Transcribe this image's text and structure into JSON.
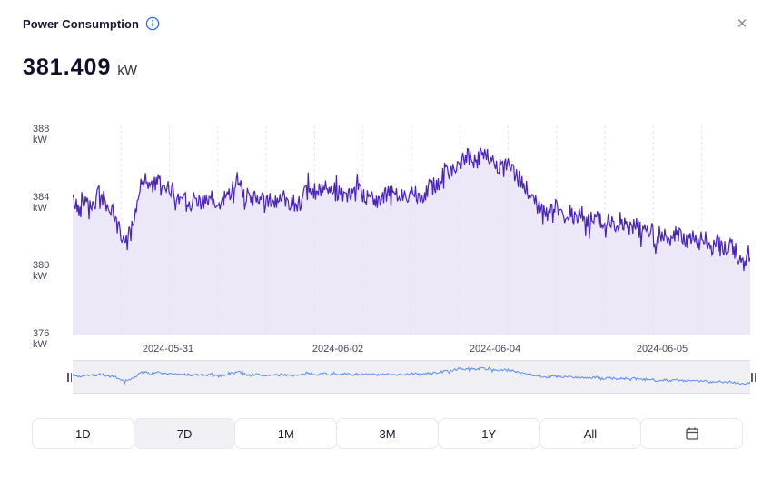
{
  "header": {
    "title": "Power Consumption",
    "close_glyph": "✕"
  },
  "current_value": {
    "value": "381.409",
    "unit": "kW"
  },
  "chart_data": {
    "type": "line",
    "title": "Power Consumption",
    "ylabel": "kW",
    "ylim": [
      376,
      388
    ],
    "grid": "vertical-dashed",
    "legend": "none",
    "y_ticks": [
      "388 kW",
      "384 kW",
      "380 kW",
      "376 kW"
    ],
    "x_ticks": [
      {
        "label": "2024-05-31",
        "pos": 0.141
      },
      {
        "label": "2024-06-02",
        "pos": 0.391
      },
      {
        "label": "2024-06-04",
        "pos": 0.623
      },
      {
        "label": "2024-06-05",
        "pos": 0.87
      }
    ],
    "line_color": "#4a23b8",
    "area_color": "#ece8f8",
    "grid_color": "#e4e4eb",
    "navigator_line_color": "#5b8def",
    "noise_amplitude": 0.55,
    "series": [
      {
        "name": "power_kw",
        "x": [
          0,
          0.01,
          0.02,
          0.03,
          0.04,
          0.05,
          0.06,
          0.07,
          0.08,
          0.09,
          0.1,
          0.108,
          0.115,
          0.125,
          0.135,
          0.145,
          0.155,
          0.165,
          0.175,
          0.185,
          0.195,
          0.205,
          0.215,
          0.225,
          0.235,
          0.245,
          0.252,
          0.262,
          0.272,
          0.282,
          0.292,
          0.302,
          0.312,
          0.322,
          0.332,
          0.342,
          0.352,
          0.362,
          0.372,
          0.382,
          0.392,
          0.402,
          0.412,
          0.422,
          0.432,
          0.442,
          0.452,
          0.462,
          0.472,
          0.482,
          0.492,
          0.502,
          0.512,
          0.522,
          0.532,
          0.542,
          0.552,
          0.562,
          0.572,
          0.582,
          0.592,
          0.602,
          0.612,
          0.622,
          0.632,
          0.642,
          0.652,
          0.662,
          0.672,
          0.682,
          0.692,
          0.702,
          0.712,
          0.722,
          0.732,
          0.742,
          0.752,
          0.762,
          0.772,
          0.782,
          0.792,
          0.802,
          0.812,
          0.822,
          0.832,
          0.842,
          0.852,
          0.862,
          0.872,
          0.882,
          0.892,
          0.902,
          0.912,
          0.922,
          0.932,
          0.942,
          0.952,
          0.962,
          0.972,
          0.982,
          0.99,
          1
        ],
        "y": [
          383.9,
          383.2,
          384.1,
          383.5,
          384.3,
          383.6,
          383.0,
          381.9,
          381.4,
          382.8,
          384.6,
          385.3,
          384.6,
          384.9,
          384.3,
          384.6,
          383.9,
          384.2,
          383.7,
          384.0,
          383.6,
          383.9,
          383.4,
          384.0,
          384.5,
          385.2,
          384.3,
          383.8,
          384.1,
          383.6,
          383.9,
          383.7,
          384.0,
          383.8,
          383.6,
          384.1,
          384.4,
          384.2,
          384.5,
          384.1,
          384.4,
          384.2,
          384.0,
          384.3,
          383.9,
          384.2,
          383.8,
          384.1,
          384.3,
          384.0,
          384.2,
          384.4,
          384.1,
          384.4,
          384.7,
          385.0,
          385.4,
          385.8,
          386.1,
          386.4,
          386.2,
          386.6,
          386.3,
          386.0,
          385.7,
          385.9,
          385.4,
          384.9,
          384.3,
          383.8,
          383.3,
          383.0,
          383.4,
          382.9,
          383.2,
          382.7,
          383.0,
          382.6,
          382.9,
          382.4,
          382.7,
          382.3,
          382.6,
          382.1,
          382.4,
          381.9,
          382.2,
          381.7,
          382.0,
          381.6,
          381.9,
          381.4,
          381.7,
          381.3,
          381.6,
          381.1,
          381.4,
          380.9,
          381.2,
          380.6,
          380.2,
          380.9
        ]
      }
    ]
  },
  "range_buttons": [
    {
      "label": "1D",
      "active": false
    },
    {
      "label": "7D",
      "active": true
    },
    {
      "label": "1M",
      "active": false
    },
    {
      "label": "3M",
      "active": false
    },
    {
      "label": "1Y",
      "active": false
    },
    {
      "label": "All",
      "active": false
    }
  ]
}
